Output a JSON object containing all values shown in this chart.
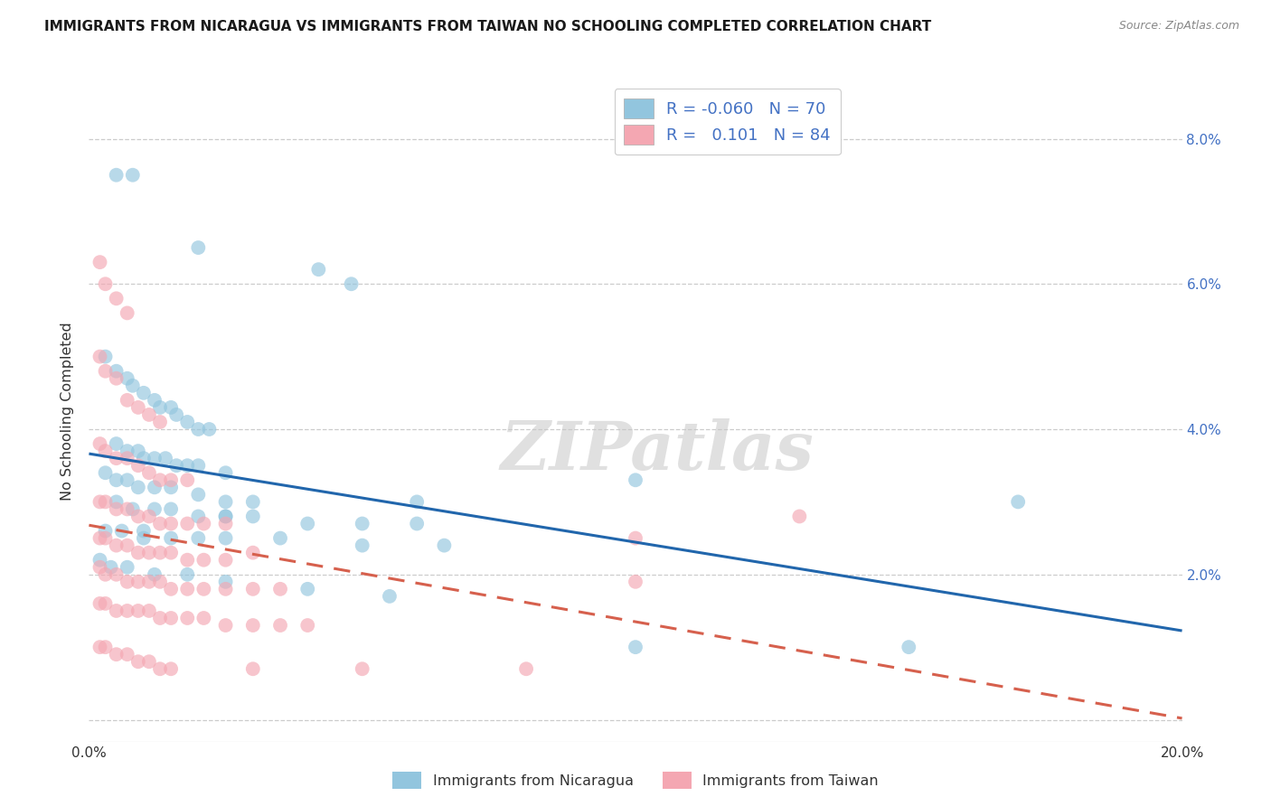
{
  "title": "IMMIGRANTS FROM NICARAGUA VS IMMIGRANTS FROM TAIWAN NO SCHOOLING COMPLETED CORRELATION CHART",
  "source": "Source: ZipAtlas.com",
  "ylabel": "No Schooling Completed",
  "xlim": [
    0.0,
    0.2
  ],
  "ylim": [
    -0.003,
    0.088
  ],
  "yticks": [
    0.0,
    0.02,
    0.04,
    0.06,
    0.08
  ],
  "xticks": [
    0.0,
    0.05,
    0.1,
    0.15,
    0.2
  ],
  "xtick_labels": [
    "0.0%",
    "",
    "",
    "",
    "20.0%"
  ],
  "watermark": "ZIPatlas",
  "legend_blue_r": "-0.060",
  "legend_blue_n": "70",
  "legend_pink_r": "0.101",
  "legend_pink_n": "84",
  "blue_color": "#92c5de",
  "pink_color": "#f4a7b2",
  "blue_line_color": "#2166ac",
  "pink_line_color": "#d6604d",
  "blue_scatter_x": [
    0.005,
    0.008,
    0.02,
    0.042,
    0.048,
    0.003,
    0.005,
    0.007,
    0.008,
    0.01,
    0.012,
    0.013,
    0.015,
    0.016,
    0.018,
    0.02,
    0.022,
    0.005,
    0.007,
    0.009,
    0.01,
    0.012,
    0.014,
    0.016,
    0.018,
    0.02,
    0.025,
    0.003,
    0.005,
    0.007,
    0.009,
    0.012,
    0.015,
    0.02,
    0.025,
    0.03,
    0.005,
    0.008,
    0.012,
    0.015,
    0.02,
    0.025,
    0.03,
    0.04,
    0.05,
    0.06,
    0.003,
    0.006,
    0.01,
    0.015,
    0.02,
    0.025,
    0.035,
    0.05,
    0.065,
    0.002,
    0.004,
    0.007,
    0.012,
    0.018,
    0.025,
    0.04,
    0.055,
    0.1,
    0.15,
    0.01,
    0.025,
    0.06,
    0.17,
    0.1
  ],
  "blue_scatter_y": [
    0.075,
    0.075,
    0.065,
    0.062,
    0.06,
    0.05,
    0.048,
    0.047,
    0.046,
    0.045,
    0.044,
    0.043,
    0.043,
    0.042,
    0.041,
    0.04,
    0.04,
    0.038,
    0.037,
    0.037,
    0.036,
    0.036,
    0.036,
    0.035,
    0.035,
    0.035,
    0.034,
    0.034,
    0.033,
    0.033,
    0.032,
    0.032,
    0.032,
    0.031,
    0.03,
    0.03,
    0.03,
    0.029,
    0.029,
    0.029,
    0.028,
    0.028,
    0.028,
    0.027,
    0.027,
    0.027,
    0.026,
    0.026,
    0.026,
    0.025,
    0.025,
    0.025,
    0.025,
    0.024,
    0.024,
    0.022,
    0.021,
    0.021,
    0.02,
    0.02,
    0.019,
    0.018,
    0.017,
    0.033,
    0.01,
    0.025,
    0.028,
    0.03,
    0.03,
    0.01
  ],
  "pink_scatter_x": [
    0.002,
    0.003,
    0.005,
    0.007,
    0.002,
    0.003,
    0.005,
    0.007,
    0.009,
    0.011,
    0.013,
    0.002,
    0.003,
    0.005,
    0.007,
    0.009,
    0.011,
    0.013,
    0.015,
    0.018,
    0.002,
    0.003,
    0.005,
    0.007,
    0.009,
    0.011,
    0.013,
    0.015,
    0.018,
    0.021,
    0.025,
    0.002,
    0.003,
    0.005,
    0.007,
    0.009,
    0.011,
    0.013,
    0.015,
    0.018,
    0.021,
    0.025,
    0.03,
    0.002,
    0.003,
    0.005,
    0.007,
    0.009,
    0.011,
    0.013,
    0.015,
    0.018,
    0.021,
    0.025,
    0.03,
    0.035,
    0.002,
    0.003,
    0.005,
    0.007,
    0.009,
    0.011,
    0.013,
    0.015,
    0.018,
    0.021,
    0.025,
    0.03,
    0.035,
    0.04,
    0.002,
    0.003,
    0.005,
    0.007,
    0.009,
    0.011,
    0.013,
    0.015,
    0.03,
    0.05,
    0.08,
    0.1,
    0.1,
    0.13
  ],
  "pink_scatter_y": [
    0.063,
    0.06,
    0.058,
    0.056,
    0.05,
    0.048,
    0.047,
    0.044,
    0.043,
    0.042,
    0.041,
    0.038,
    0.037,
    0.036,
    0.036,
    0.035,
    0.034,
    0.033,
    0.033,
    0.033,
    0.03,
    0.03,
    0.029,
    0.029,
    0.028,
    0.028,
    0.027,
    0.027,
    0.027,
    0.027,
    0.027,
    0.025,
    0.025,
    0.024,
    0.024,
    0.023,
    0.023,
    0.023,
    0.023,
    0.022,
    0.022,
    0.022,
    0.023,
    0.021,
    0.02,
    0.02,
    0.019,
    0.019,
    0.019,
    0.019,
    0.018,
    0.018,
    0.018,
    0.018,
    0.018,
    0.018,
    0.016,
    0.016,
    0.015,
    0.015,
    0.015,
    0.015,
    0.014,
    0.014,
    0.014,
    0.014,
    0.013,
    0.013,
    0.013,
    0.013,
    0.01,
    0.01,
    0.009,
    0.009,
    0.008,
    0.008,
    0.007,
    0.007,
    0.007,
    0.007,
    0.007,
    0.025,
    0.019,
    0.028
  ]
}
